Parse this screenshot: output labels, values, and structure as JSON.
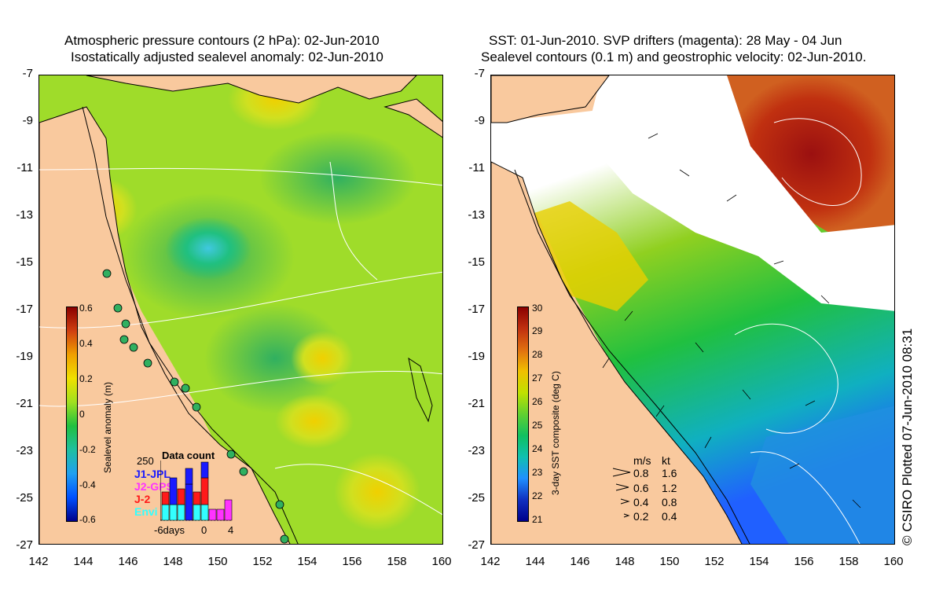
{
  "left_panel": {
    "title_line1": "Atmospheric pressure contours (2 hPa): 02-Jun-2010",
    "title_line2": "Isostatically adjusted sealevel anomaly: 02-Jun-2010",
    "colorbar_label": "Sealevel anomaly (m)",
    "colorbar_ticks": [
      "0.6",
      "0.4",
      "0.2",
      "0",
      "-0.2",
      "-0.4",
      "-0.6"
    ],
    "data_count": {
      "title": "Data count",
      "max_label": "250",
      "legend": [
        {
          "label": "J1-JPL",
          "color": "#1a1aff"
        },
        {
          "label": "J2-GPS",
          "color": "#ff33ff"
        },
        {
          "label": "J-2",
          "color": "#ff1a1a"
        },
        {
          "label": "Envi",
          "color": "#33ffff"
        }
      ],
      "x_labels": [
        "-6days",
        "0",
        "4"
      ]
    }
  },
  "right_panel": {
    "title_line1": "SST: 01-Jun-2010. SVP drifters (magenta): 28 May - 04 Jun",
    "title_line2": "Sealevel contours (0.1 m) and geostrophic velocity: 02-Jun-2010.",
    "colorbar_label": "3-day SST composite (deg C)",
    "colorbar_ticks": [
      "30",
      "29",
      "28",
      "27",
      "26",
      "25",
      "24",
      "23",
      "22",
      "21"
    ],
    "velocity_legend": {
      "header_ms": "m/s",
      "header_kt": "kt",
      "rows": [
        {
          "ms": "0.8",
          "kt": "1.6"
        },
        {
          "ms": "0.6",
          "kt": "1.2"
        },
        {
          "ms": "0.4",
          "kt": "0.8"
        },
        {
          "ms": "0.2",
          "kt": "0.4"
        }
      ]
    }
  },
  "y_ticks": [
    "-7",
    "-9",
    "-11",
    "-13",
    "-15",
    "-17",
    "-19",
    "-21",
    "-23",
    "-25",
    "-27"
  ],
  "x_ticks": [
    "142",
    "144",
    "146",
    "148",
    "150",
    "152",
    "154",
    "156",
    "158",
    "160"
  ],
  "copyright": "© CSIRO Plotted 07-Jun-2010 08:31",
  "colors": {
    "land": "#f9c99e",
    "sla_ramp": [
      "#8b0000",
      "#e06010",
      "#ffe000",
      "#a0e020",
      "#00b050",
      "#00b0e0",
      "#0060ff",
      "#00008b"
    ],
    "sst_ramp": [
      "#8b0000",
      "#d05a00",
      "#ffd000",
      "#c0e000",
      "#20c040",
      "#00c0c0",
      "#2080ff",
      "#00008b"
    ]
  }
}
